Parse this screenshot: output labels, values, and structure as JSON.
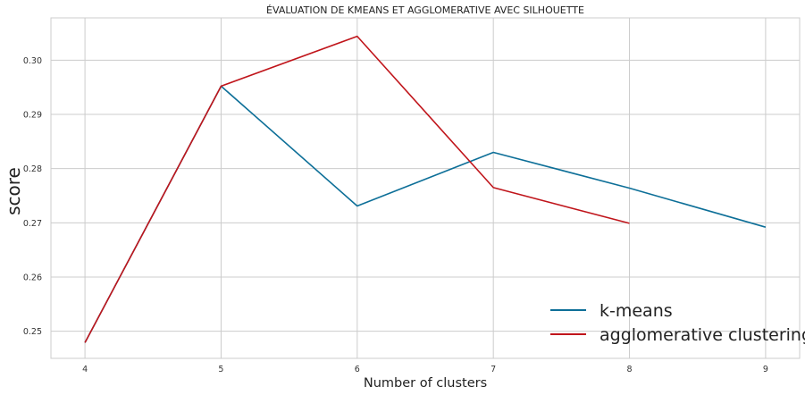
{
  "chart_data": {
    "type": "line",
    "title": "ÉVALUATION DE KMEANS ET AGGLOMERATIVE AVEC SILHOUETTE",
    "xlabel": "Number of clusters",
    "ylabel": "score",
    "xlim": [
      3.75,
      9.25
    ],
    "ylim": [
      0.245,
      0.3078
    ],
    "xticks": [
      4,
      5,
      6,
      7,
      8,
      9
    ],
    "yticks": [
      0.25,
      0.26,
      0.27,
      0.28,
      0.29,
      0.3
    ],
    "ytick_labels": [
      "0.25",
      "0.26",
      "0.27",
      "0.28",
      "0.29",
      "0.30"
    ],
    "grid": true,
    "legend_position": "bottom-right",
    "series": [
      {
        "name": "k-means",
        "color": "#0d6f98",
        "x": [
          4,
          5,
          6,
          7,
          8,
          9
        ],
        "y": [
          0.2479,
          0.2952,
          0.2731,
          0.283,
          0.2764,
          0.2692
        ]
      },
      {
        "name": "agglomerative clustering",
        "color": "#c0151b",
        "x": [
          4,
          5,
          6,
          7,
          8
        ],
        "y": [
          0.2479,
          0.2952,
          0.3044,
          0.2765,
          0.2699
        ]
      }
    ]
  }
}
